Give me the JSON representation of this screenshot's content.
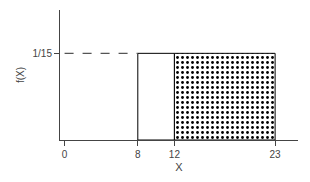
{
  "chart_data": {
    "type": "histogram",
    "xlabel": "X",
    "ylabel": "f(X)",
    "xlim": [
      -0.5,
      25.5
    ],
    "ylim": [
      0,
      0.1
    ],
    "xticks": [
      0,
      8,
      12,
      23
    ],
    "yticks": [
      {
        "value": 0.06667,
        "label": "1/15"
      }
    ],
    "grid": false,
    "legend": false,
    "series": [
      {
        "type": "bar",
        "bins": [
          8,
          12
        ],
        "values": [
          0.06667
        ],
        "color": "#000000"
      },
      {
        "type": "bar",
        "bins": [
          12,
          23
        ],
        "values": [
          0.06667
        ],
        "color": "#000000",
        "marker": "dots"
      },
      {
        "type": "line",
        "x": [
          0,
          8
        ],
        "values": [
          0.06667,
          0.06667
        ],
        "color": "#555555",
        "line_style": "dashed"
      }
    ]
  }
}
